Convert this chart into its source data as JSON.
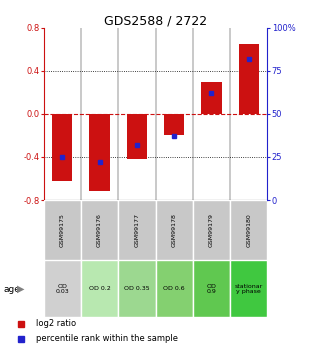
{
  "title": "GDS2588 / 2722",
  "samples": [
    "GSM99175",
    "GSM99176",
    "GSM99177",
    "GSM99178",
    "GSM99179",
    "GSM99180"
  ],
  "log2_top": [
    0.0,
    0.0,
    0.0,
    0.0,
    0.3,
    0.65
  ],
  "log2_bottom": [
    -0.62,
    -0.72,
    -0.42,
    -0.2,
    0.0,
    0.0
  ],
  "percentile": [
    25,
    22,
    32,
    37,
    62,
    82
  ],
  "age_labels": [
    "OD\n0.03",
    "OD 0.2",
    "OD 0.35",
    "OD 0.6",
    "OD\n0.9",
    "stationar\ny phase"
  ],
  "age_colors": [
    "#d0d0d0",
    "#b8e8b0",
    "#9cd890",
    "#84d070",
    "#60c850",
    "#40c840"
  ],
  "bar_color": "#cc1111",
  "dot_color": "#2222cc",
  "ylim": [
    -0.8,
    0.8
  ],
  "y2lim": [
    0,
    100
  ],
  "yticks_left": [
    -0.8,
    -0.4,
    0.0,
    0.4,
    0.8
  ],
  "yticks_right": [
    0,
    25,
    50,
    75,
    100
  ],
  "ytick_labels_right": [
    "0",
    "25",
    "50",
    "75",
    "100%"
  ],
  "title_fontsize": 9,
  "tick_fontsize": 6,
  "bar_width": 0.55
}
